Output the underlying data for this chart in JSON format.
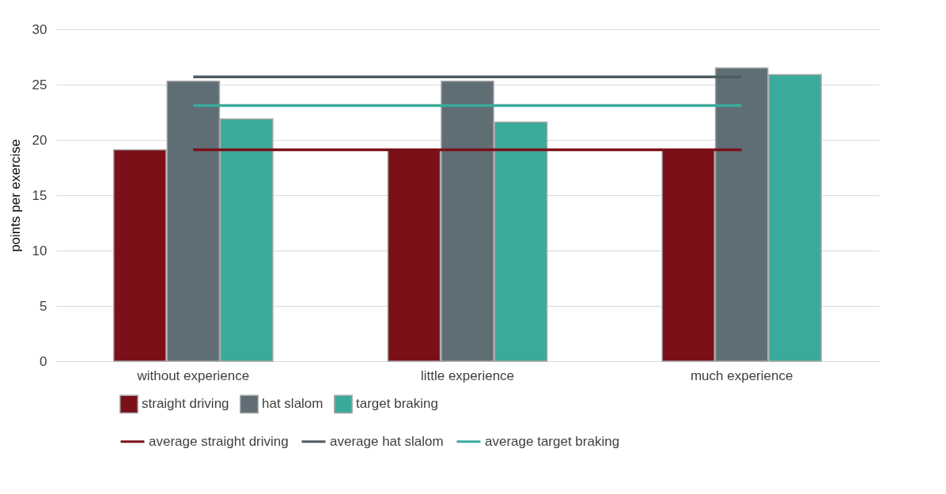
{
  "chart_data": {
    "type": "bar",
    "ylabel": "points per exercise",
    "categories": [
      "without experience",
      "little experience",
      "much experience"
    ],
    "series": [
      {
        "name": "straight driving",
        "color": "#7b1019",
        "values": [
          19.1,
          19.1,
          19.1
        ]
      },
      {
        "name": "hat slalom",
        "color": "#5f6e75",
        "values": [
          25.3,
          25.3,
          26.5
        ]
      },
      {
        "name": "target braking",
        "color": "#3aab9a",
        "values": [
          21.9,
          21.6,
          25.9
        ]
      },
      {
        "name": "average straight driving",
        "type": "line",
        "color": "#7b1019",
        "values": [
          19.1,
          19.1,
          19.1
        ]
      },
      {
        "name": "average hat slalom",
        "type": "line",
        "color": "#4e5b62",
        "values": [
          25.7,
          25.7,
          25.7
        ]
      },
      {
        "name": "average target braking",
        "type": "line",
        "color": "#3aab9a",
        "values": [
          23.1,
          23.1,
          23.1
        ]
      }
    ],
    "ylim": [
      0,
      30
    ],
    "yticks": [
      0,
      5,
      10,
      15,
      20,
      25,
      30
    ],
    "grid": "y",
    "legend": "bottom"
  }
}
